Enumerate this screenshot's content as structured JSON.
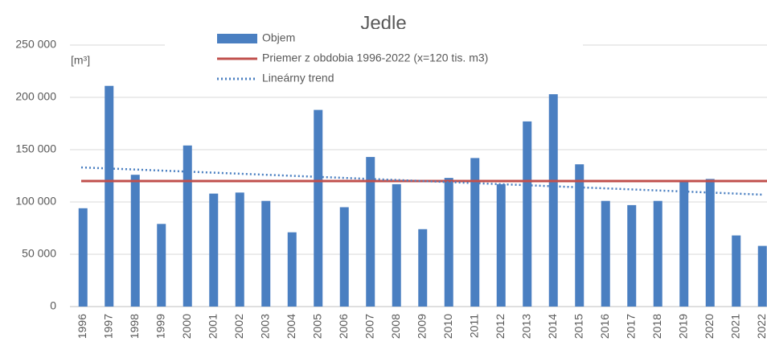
{
  "chart_data": {
    "type": "bar",
    "title": "Jedle",
    "annotations": [
      "[m³]"
    ],
    "categories": [
      "1996",
      "1997",
      "1998",
      "1999",
      "2000",
      "2001",
      "2002",
      "2003",
      "2004",
      "2005",
      "2006",
      "2007",
      "2008",
      "2009",
      "2010",
      "2011",
      "2012",
      "2013",
      "2014",
      "2015",
      "2016",
      "2017",
      "2018",
      "2019",
      "2020",
      "2021",
      "2022"
    ],
    "series": [
      {
        "name": "Objem",
        "type": "bar",
        "color": "#4a7fc1",
        "values": [
          94000,
          211000,
          126000,
          79000,
          154000,
          108000,
          109000,
          101000,
          71000,
          188000,
          95000,
          143000,
          117000,
          74000,
          123000,
          142000,
          117000,
          177000,
          203000,
          136000,
          101000,
          97000,
          101000,
          120000,
          122000,
          68000,
          58000
        ]
      },
      {
        "name": "Priemer z obdobia 1996-2022 (x=120 tis. m3)",
        "type": "line",
        "color": "#c0504d",
        "values": [
          120000,
          120000,
          120000,
          120000,
          120000,
          120000,
          120000,
          120000,
          120000,
          120000,
          120000,
          120000,
          120000,
          120000,
          120000,
          120000,
          120000,
          120000,
          120000,
          120000,
          120000,
          120000,
          120000,
          120000,
          120000,
          120000,
          120000
        ]
      },
      {
        "name": "Lineárny trend",
        "type": "dotted",
        "color": "#4a7fc1",
        "values": [
          133000,
          132000,
          131000,
          130000,
          129000,
          128000,
          127000,
          126000,
          125000,
          124000,
          123000,
          122000,
          121000,
          120000,
          119000,
          118000,
          117000,
          116000,
          115000,
          114000,
          113000,
          112000,
          111000,
          110000,
          109000,
          108000,
          107000
        ]
      }
    ],
    "ylim": [
      0,
      250000
    ],
    "yticks": [
      {
        "value": 0,
        "label": "0"
      },
      {
        "value": 50000,
        "label": "50 000"
      },
      {
        "value": 100000,
        "label": "100 000"
      },
      {
        "value": 150000,
        "label": "150 000"
      },
      {
        "value": 200000,
        "label": "200 000"
      },
      {
        "value": 250000,
        "label": "250 000"
      }
    ],
    "grid": true,
    "legend": "top"
  }
}
